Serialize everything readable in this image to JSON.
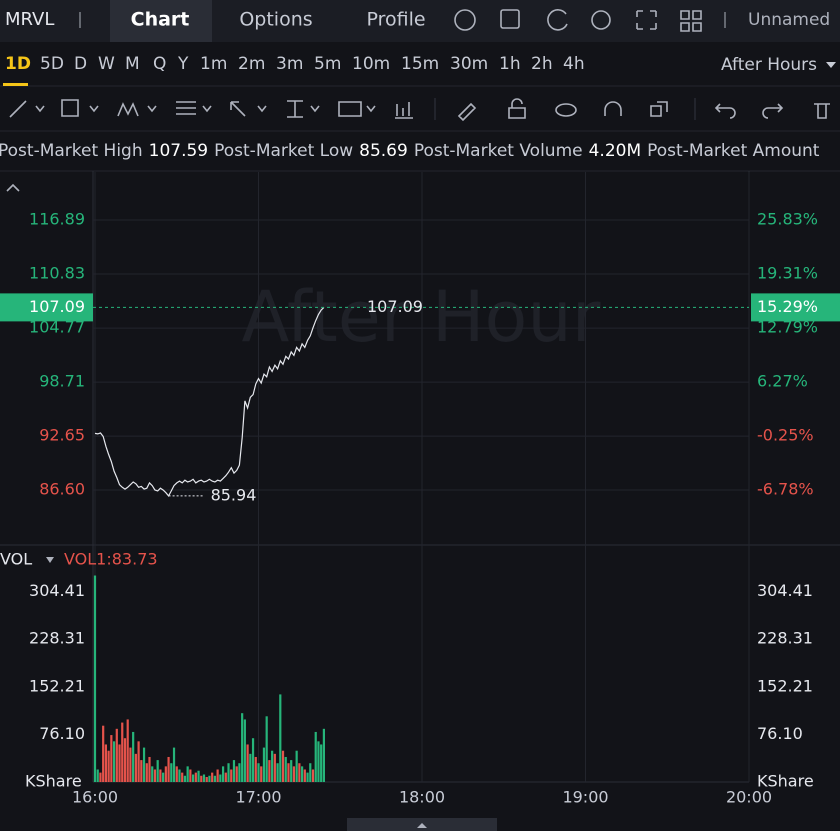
{
  "header": {
    "symbol": "MRVL",
    "tabs": [
      "Chart",
      "Options",
      "Profile"
    ],
    "layout_name": "Unnamed"
  },
  "intervals": {
    "items": [
      "1D",
      "5D",
      "D",
      "W",
      "M",
      "Q",
      "Y",
      "1m",
      "2m",
      "3m",
      "5m",
      "10m",
      "15m",
      "30m",
      "1h",
      "2h",
      "4h"
    ],
    "session": "After Hours"
  },
  "stats": [
    {
      "label": "Post-Market High",
      "value": 107.59
    },
    {
      "label": "Post-Market Low",
      "value": 85.69
    },
    {
      "label": "Post-Market Volume",
      "value": "4.20M"
    },
    {
      "label": "Post-Market Amount"
    }
  ],
  "chart_data": [
    {
      "type": "line",
      "watermark": "After Hour",
      "x": [
        960,
        961,
        962,
        963,
        964,
        965,
        966,
        967,
        968,
        969,
        970,
        971,
        972,
        973,
        974,
        975,
        976,
        977,
        978,
        979,
        980,
        981,
        982,
        983,
        984,
        985,
        986,
        987,
        988,
        989,
        990,
        991,
        992,
        993,
        994,
        995,
        996,
        997,
        998,
        999,
        1000,
        1001,
        1002,
        1003,
        1004,
        1005,
        1006,
        1007,
        1008,
        1009,
        1010,
        1011,
        1012,
        1013,
        1014,
        1015,
        1016,
        1017,
        1018,
        1019,
        1020,
        1021,
        1022,
        1023,
        1024,
        1025,
        1026,
        1027,
        1028,
        1029,
        1030,
        1031,
        1032,
        1033,
        1034,
        1035,
        1036,
        1037,
        1038,
        1039,
        1040,
        1041,
        1042,
        1043,
        1044
      ],
      "series": [
        {
          "color": "#e6e8ee",
          "values": [
            92.95,
            92.9,
            93.0,
            92.6,
            91.5,
            90.6,
            89.8,
            88.7,
            88.0,
            87.2,
            86.9,
            86.7,
            86.9,
            87.2,
            87.5,
            87.3,
            86.9,
            87.0,
            86.7,
            86.8,
            87.4,
            87.1,
            86.6,
            86.5,
            86.8,
            86.6,
            86.3,
            85.94,
            86.5,
            87.1,
            87.4,
            87.6,
            87.4,
            87.7,
            87.5,
            87.6,
            87.8,
            87.4,
            87.6,
            87.7,
            87.5,
            87.6,
            87.8,
            87.6,
            87.5,
            87.7,
            87.6,
            87.9,
            88.2,
            88.6,
            89.1,
            88.5,
            88.8,
            89.4,
            92.5,
            96.6,
            95.8,
            97.0,
            97.3,
            98.5,
            99.1,
            98.6,
            99.6,
            99.3,
            100.4,
            99.9,
            100.6,
            100.2,
            101.1,
            100.7,
            101.6,
            101.3,
            102.1,
            101.7,
            102.6,
            102.2,
            103.0,
            102.6,
            103.4,
            103.9,
            104.8,
            105.6,
            106.3,
            106.8,
            107.09
          ]
        }
      ],
      "ylim": [
        80.43,
        122.28
      ],
      "yticks": [
        116.89,
        110.83,
        104.77,
        98.71,
        92.65,
        {
          "value": 86.6,
          "label": "86.60"
        }
      ],
      "y2lim": [
        -13.42,
        31.63
      ],
      "y2ticks": [
        {
          "value": 25.83,
          "label": "25.83%"
        },
        {
          "value": 19.31,
          "label": "19.31%"
        },
        {
          "value": 12.79,
          "label": "12.79%"
        },
        {
          "value": 6.27,
          "label": "6.27%"
        },
        {
          "value": -0.25,
          "label": "-0.25%"
        },
        {
          "value": -6.78,
          "label": "-6.78%"
        }
      ],
      "last_price": 107.09,
      "last_change": {
        "value": 15.29,
        "label": "15.29%"
      },
      "low": 85.94,
      "up_color": "#26b57a",
      "down_color": "#e5534b",
      "grid": true
    },
    {
      "type": "bar",
      "indicator": "VOL",
      "ma_label": "VOL1:83.73",
      "unit": "KShare",
      "values": [
        330,
        20,
        15,
        90,
        60,
        50,
        75,
        65,
        85,
        60,
        95,
        70,
        100,
        55,
        80,
        45,
        65,
        35,
        55,
        30,
        40,
        25,
        20,
        35,
        20,
        15,
        25,
        40,
        30,
        55,
        25,
        20,
        15,
        10,
        25,
        20,
        12,
        15,
        18,
        10,
        12,
        8,
        10,
        15,
        10,
        20,
        12,
        25,
        15,
        30,
        20,
        35,
        25,
        30,
        110,
        100,
        60,
        45,
        70,
        40,
        30,
        25,
        55,
        105,
        35,
        50,
        45,
        30,
        140,
        50,
        40,
        30,
        35,
        25,
        50,
        30,
        25,
        20,
        15,
        30,
        20,
        80,
        65,
        60,
        85
      ],
      "colors": [
        "#26b57a",
        "#26b57a",
        "#e5534b",
        "#e5534b",
        "#e5534b",
        "#e5534b",
        "#e5534b",
        "#26b57a",
        "#e5534b",
        "#e5534b",
        "#e5534b",
        "#e5534b",
        "#e5534b",
        "#e5534b",
        "#26b57a",
        "#e5534b",
        "#e5534b",
        "#e5534b",
        "#26b57a",
        "#e5534b",
        "#e5534b",
        "#26b57a",
        "#e5534b",
        "#26b57a",
        "#e5534b",
        "#26b57a",
        "#e5534b",
        "#e5534b",
        "#26b57a",
        "#26b57a",
        "#e5534b",
        "#26b57a",
        "#e5534b",
        "#26b57a",
        "#26b57a",
        "#e5534b",
        "#26b57a",
        "#e5534b",
        "#26b57a",
        "#e5534b",
        "#26b57a",
        "#e5534b",
        "#26b57a",
        "#e5534b",
        "#26b57a",
        "#e5534b",
        "#26b57a",
        "#26b57a",
        "#e5534b",
        "#26b57a",
        "#e5534b",
        "#26b57a",
        "#e5534b",
        "#26b57a",
        "#26b57a",
        "#26b57a",
        "#e5534b",
        "#26b57a",
        "#26b57a",
        "#e5534b",
        "#26b57a",
        "#e5534b",
        "#26b57a",
        "#26b57a",
        "#e5534b",
        "#26b57a",
        "#e5534b",
        "#26b57a",
        "#26b57a",
        "#e5534b",
        "#26b57a",
        "#e5534b",
        "#26b57a",
        "#e5534b",
        "#26b57a",
        "#e5534b",
        "#26b57a",
        "#e5534b",
        "#26b57a",
        "#26b57a",
        "#e5534b",
        "#26b57a",
        "#26b57a",
        "#26b57a",
        "#26b57a"
      ],
      "ylim": [
        0,
        374
      ],
      "yticks": [
        304.41,
        228.31,
        152.21,
        {
          "value": 76.1,
          "label": "76.10"
        }
      ],
      "xlim": [
        960,
        1200
      ],
      "xticks": [
        {
          "value": 960,
          "label": "16:00"
        },
        {
          "value": 1020,
          "label": "17:00"
        },
        {
          "value": 1080,
          "label": "18:00"
        },
        {
          "value": 1140,
          "label": "19:00"
        },
        {
          "value": 1200,
          "label": "20:00"
        }
      ]
    }
  ]
}
